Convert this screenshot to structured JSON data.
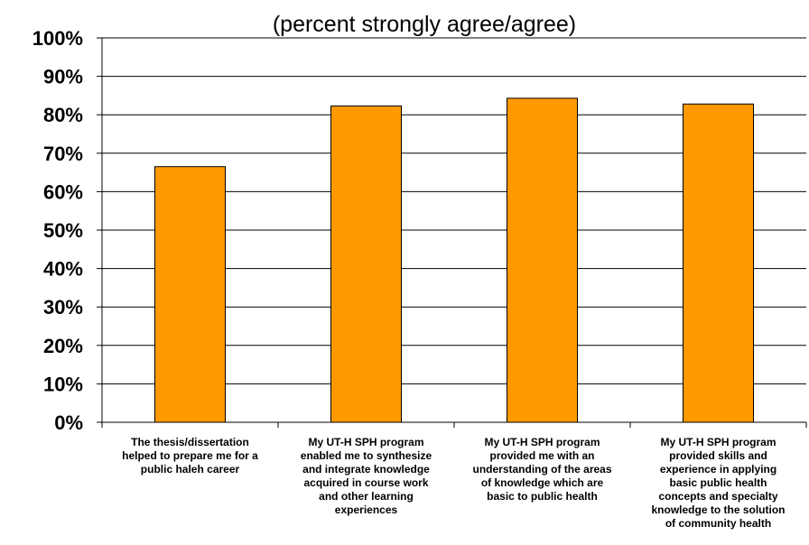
{
  "chart_data": {
    "type": "bar",
    "title": "",
    "subtitle": "(percent strongly agree/agree)",
    "xlabel": "",
    "ylabel": "",
    "ylim": [
      0,
      100
    ],
    "ytick_step": 10,
    "ytick_labels": [
      "0%",
      "10%",
      "20%",
      "30%",
      "40%",
      "50%",
      "60%",
      "70%",
      "80%",
      "90%",
      "100%"
    ],
    "grid": true,
    "legend": "none",
    "bar_color": "#ff9900",
    "categories": [
      [
        "The thesis/dissertation",
        "helped to prepare me for a",
        "public haleh career"
      ],
      [
        "My UT-H SPH program",
        "enabled me to synthesize",
        "and integrate knowledge",
        "acquired in course work",
        "and other learning",
        "experiences"
      ],
      [
        "My UT-H SPH program",
        "provided me with an",
        "understanding of the areas",
        "of knowledge which are",
        "basic to public health"
      ],
      [
        "My UT-H SPH program",
        "provided skills and",
        "experience in applying",
        "basic public health",
        "concepts and specialty",
        "knowledge to the solution",
        "of community health"
      ]
    ],
    "values": [
      66.5,
      82.3,
      84.3,
      82.8
    ]
  }
}
